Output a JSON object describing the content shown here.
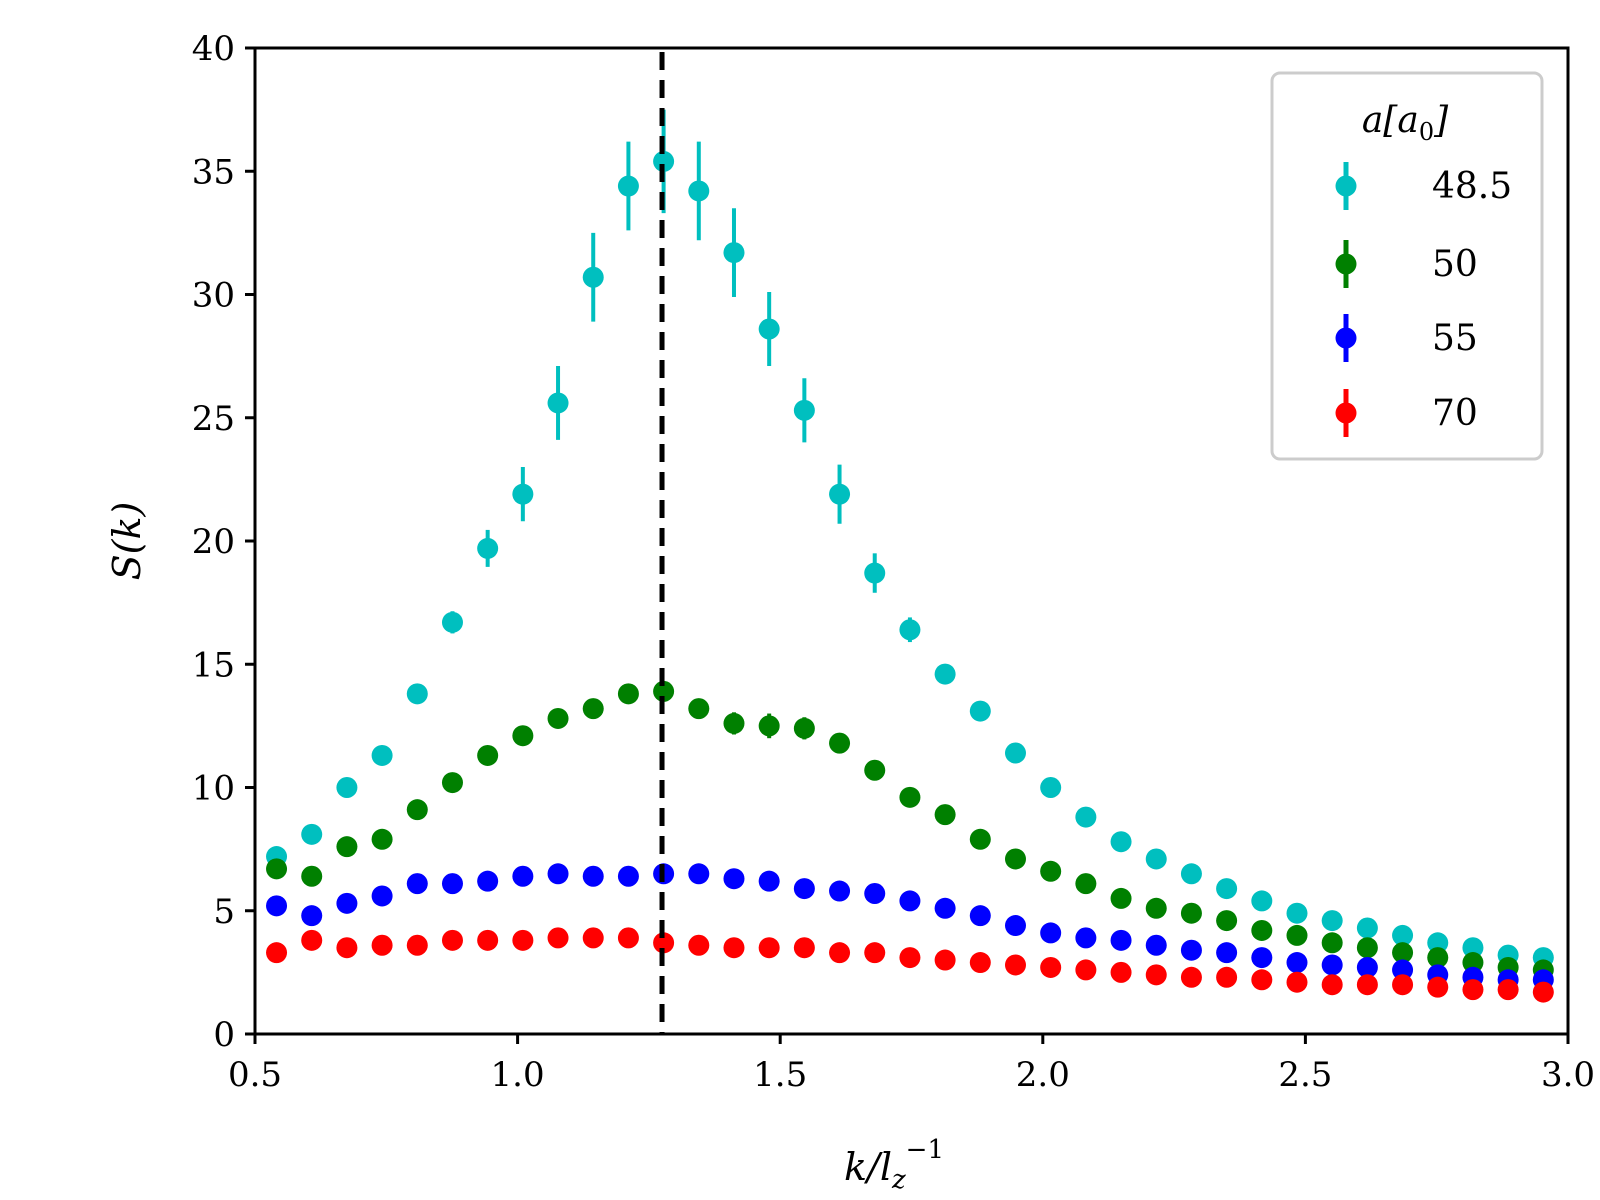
{
  "chart_data": {
    "type": "scatter",
    "title": "",
    "xlabel": "k/l_z^-1",
    "ylabel": "S(k)",
    "xlim": [
      0.5,
      3.0
    ],
    "ylim": [
      0,
      40
    ],
    "xticks": [
      0.5,
      1.0,
      1.5,
      2.0,
      2.5,
      3.0
    ],
    "xtick_labels": [
      "0.5",
      "1.0",
      "1.5",
      "2.0",
      "2.5",
      "3.0"
    ],
    "yticks": [
      0,
      5,
      10,
      15,
      20,
      25,
      30,
      35,
      40
    ],
    "ytick_labels": [
      "0",
      "5",
      "10",
      "15",
      "20",
      "25",
      "30",
      "35",
      "40"
    ],
    "vline_x": 1.275,
    "grid": false,
    "legend": {
      "title": "a[a0]",
      "position": "top-right",
      "entries": [
        "48.5",
        "50",
        "55",
        "70"
      ]
    },
    "x": [
      0.541,
      0.608,
      0.675,
      0.742,
      0.809,
      0.876,
      0.943,
      1.01,
      1.077,
      1.144,
      1.211,
      1.278,
      1.345,
      1.412,
      1.479,
      1.546,
      1.613,
      1.68,
      1.747,
      1.814,
      1.881,
      1.948,
      2.015,
      2.082,
      2.149,
      2.216,
      2.283,
      2.35,
      2.417,
      2.484,
      2.551,
      2.618,
      2.685,
      2.752,
      2.819,
      2.886,
      2.953
    ],
    "series": [
      {
        "name": "48.5",
        "color": "#00bfbf",
        "values": [
          7.2,
          8.1,
          10.0,
          11.3,
          13.8,
          16.7,
          19.7,
          21.9,
          25.6,
          30.7,
          34.4,
          35.4,
          34.2,
          31.7,
          28.6,
          25.3,
          21.9,
          18.7,
          16.4,
          14.6,
          13.1,
          11.4,
          10.0,
          8.8,
          7.8,
          7.1,
          6.5,
          5.9,
          5.4,
          4.9,
          4.6,
          4.3,
          4.0,
          3.7,
          3.5,
          3.2,
          3.1
        ],
        "errors": [
          0.25,
          0.2,
          0.2,
          0.25,
          0.3,
          0.45,
          0.75,
          1.1,
          1.5,
          1.8,
          1.8,
          2.1,
          2.0,
          1.8,
          1.5,
          1.3,
          1.2,
          0.8,
          0.5,
          0.3,
          0.2,
          0.2,
          0.2,
          0.15,
          0.15,
          0.15,
          0.15,
          0.1,
          0.1,
          0.1,
          0.1,
          0.1,
          0.1,
          0.1,
          0.1,
          0.1,
          0.1
        ]
      },
      {
        "name": "50",
        "color": "#008000",
        "values": [
          6.7,
          6.4,
          7.6,
          7.9,
          9.1,
          10.2,
          11.3,
          12.1,
          12.8,
          13.2,
          13.8,
          13.9,
          13.2,
          12.6,
          12.5,
          12.4,
          11.8,
          10.7,
          9.6,
          8.9,
          7.9,
          7.1,
          6.6,
          6.1,
          5.5,
          5.1,
          4.9,
          4.6,
          4.2,
          4.0,
          3.7,
          3.5,
          3.3,
          3.1,
          2.9,
          2.7,
          2.6
        ],
        "errors": [
          0.15,
          0.15,
          0.15,
          0.15,
          0.2,
          0.2,
          0.2,
          0.25,
          0.3,
          0.3,
          0.3,
          0.35,
          0.4,
          0.45,
          0.5,
          0.45,
          0.4,
          0.3,
          0.25,
          0.2,
          0.2,
          0.15,
          0.15,
          0.15,
          0.1,
          0.1,
          0.1,
          0.1,
          0.1,
          0.1,
          0.1,
          0.1,
          0.1,
          0.1,
          0.1,
          0.1,
          0.1
        ]
      },
      {
        "name": "55",
        "color": "#0000ff",
        "values": [
          5.2,
          4.8,
          5.3,
          5.6,
          6.1,
          6.1,
          6.2,
          6.4,
          6.5,
          6.4,
          6.4,
          6.5,
          6.5,
          6.3,
          6.2,
          5.9,
          5.8,
          5.7,
          5.4,
          5.1,
          4.8,
          4.4,
          4.1,
          3.9,
          3.8,
          3.6,
          3.4,
          3.3,
          3.1,
          2.9,
          2.8,
          2.7,
          2.6,
          2.4,
          2.3,
          2.2,
          2.2
        ],
        "errors": [
          0.1,
          0.1,
          0.1,
          0.1,
          0.1,
          0.1,
          0.1,
          0.1,
          0.1,
          0.1,
          0.1,
          0.1,
          0.1,
          0.1,
          0.1,
          0.1,
          0.1,
          0.1,
          0.1,
          0.1,
          0.1,
          0.1,
          0.1,
          0.1,
          0.1,
          0.1,
          0.1,
          0.1,
          0.1,
          0.1,
          0.1,
          0.1,
          0.1,
          0.1,
          0.1,
          0.1,
          0.1
        ]
      },
      {
        "name": "70",
        "color": "#ff0000",
        "values": [
          3.3,
          3.8,
          3.5,
          3.6,
          3.6,
          3.8,
          3.8,
          3.8,
          3.9,
          3.9,
          3.9,
          3.7,
          3.6,
          3.5,
          3.5,
          3.5,
          3.3,
          3.3,
          3.1,
          3.0,
          2.9,
          2.8,
          2.7,
          2.6,
          2.5,
          2.4,
          2.3,
          2.3,
          2.2,
          2.1,
          2.0,
          2.0,
          2.0,
          1.9,
          1.8,
          1.8,
          1.7
        ],
        "errors": [
          0.1,
          0.1,
          0.1,
          0.1,
          0.1,
          0.1,
          0.1,
          0.1,
          0.1,
          0.1,
          0.1,
          0.1,
          0.1,
          0.1,
          0.1,
          0.1,
          0.1,
          0.1,
          0.1,
          0.1,
          0.1,
          0.1,
          0.1,
          0.1,
          0.1,
          0.1,
          0.1,
          0.1,
          0.1,
          0.1,
          0.1,
          0.1,
          0.1,
          0.1,
          0.1,
          0.1,
          0.1
        ]
      }
    ]
  }
}
